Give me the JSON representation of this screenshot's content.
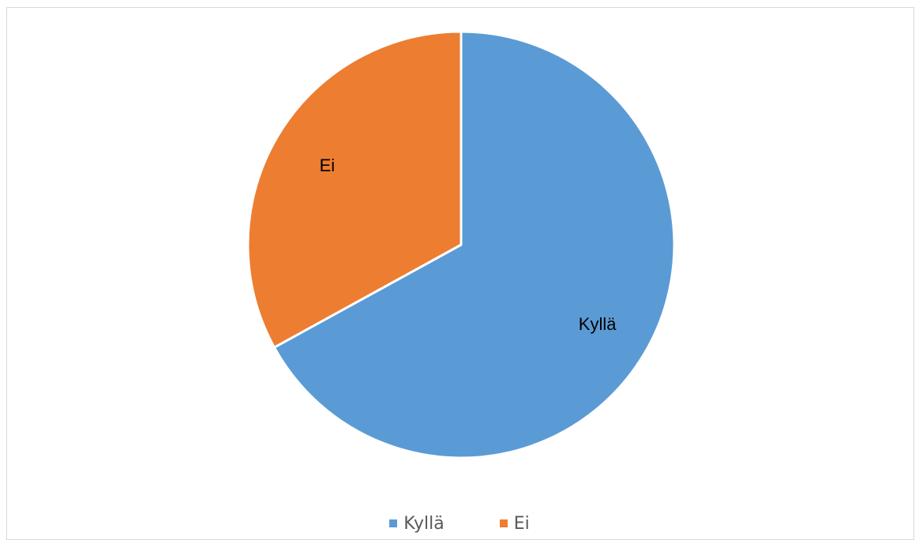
{
  "chart_data": {
    "type": "pie",
    "title": "",
    "categories": [
      "Kyllä",
      "Ei"
    ],
    "values": [
      67,
      33
    ],
    "colors": [
      "#5b9bd5",
      "#ed7d31"
    ],
    "data_labels": [
      "Kyllä",
      "Ei"
    ],
    "legend": {
      "position": "bottom",
      "entries": [
        "Kyllä",
        "Ei"
      ]
    }
  }
}
